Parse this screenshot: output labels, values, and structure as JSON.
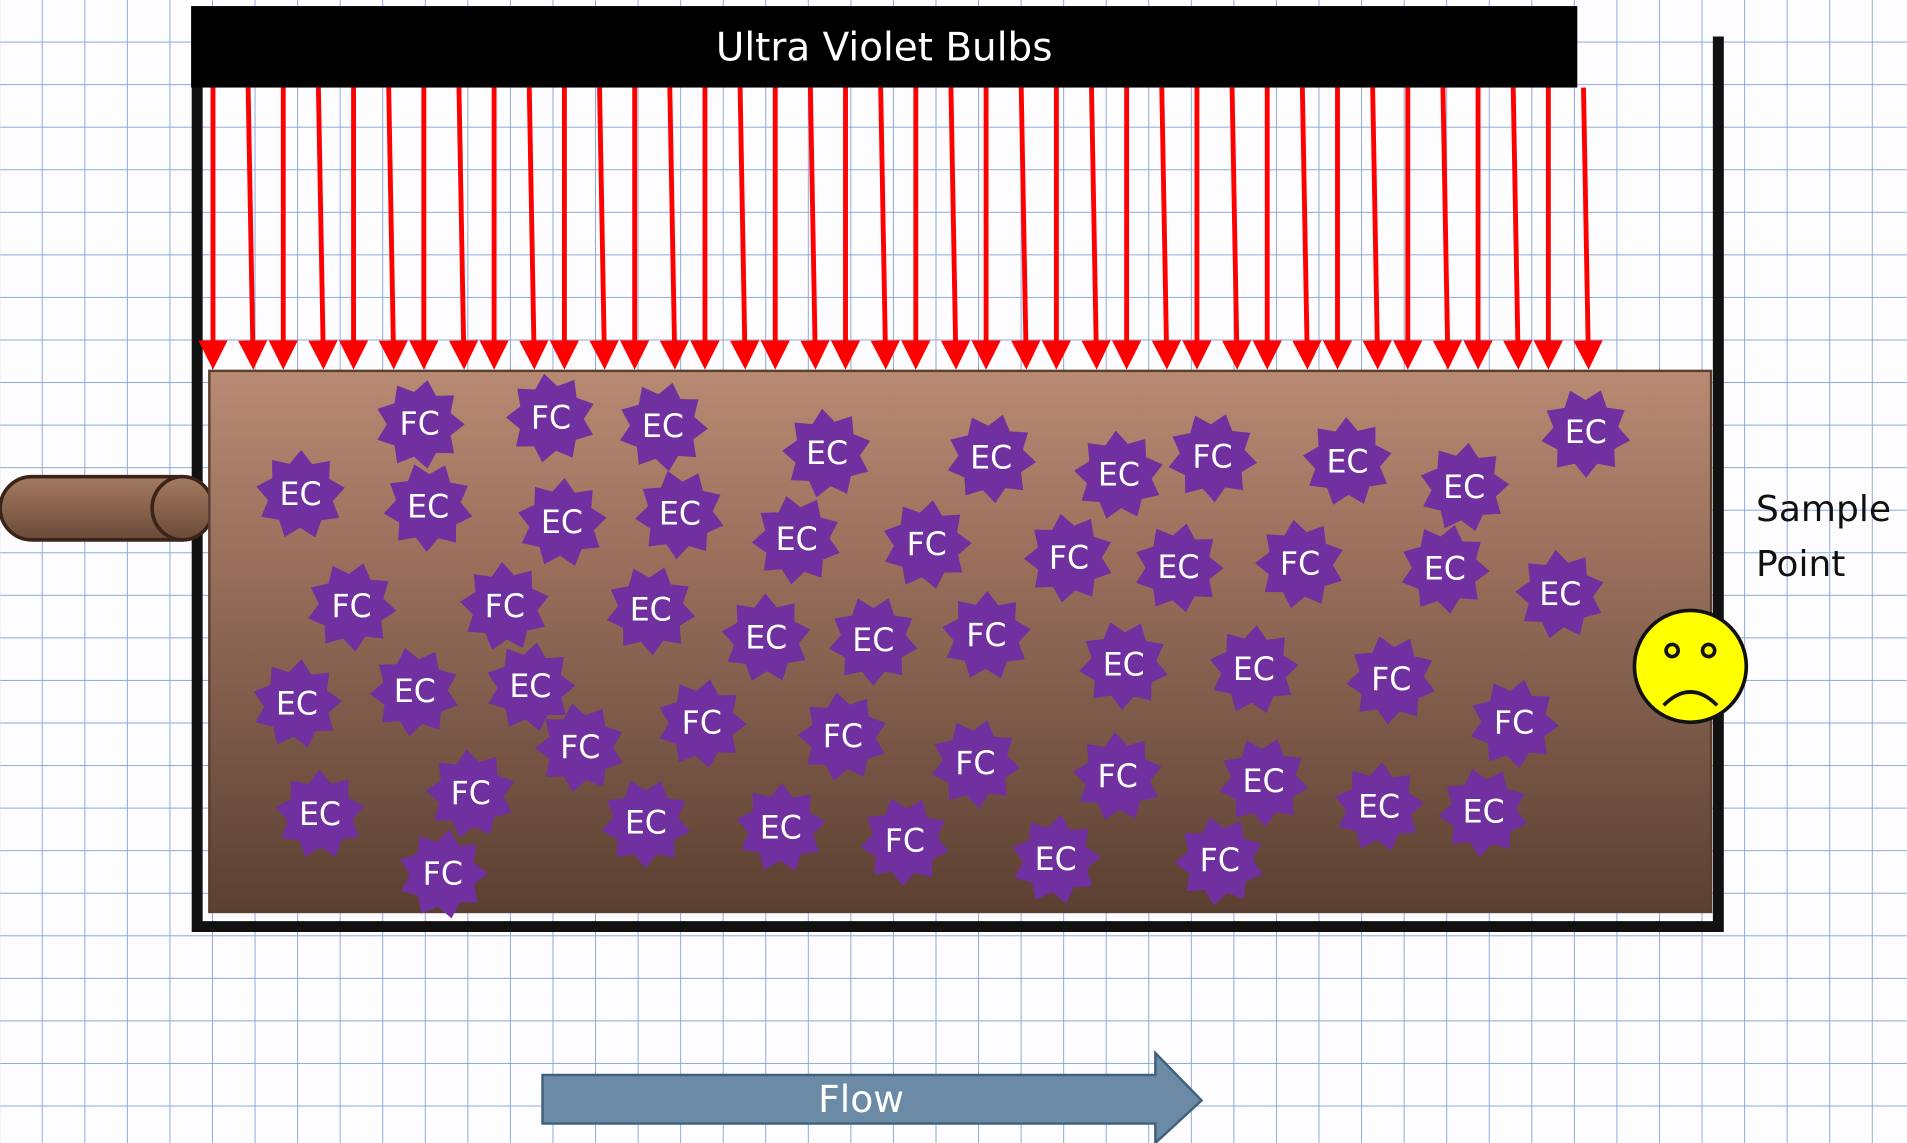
{
  "header": {
    "title": "Ultra Violet Bulbs"
  },
  "sample_point": {
    "label": "Sample Point"
  },
  "flow": {
    "label": "Flow"
  },
  "particles": [
    "FC",
    "FC",
    "EC",
    "EC",
    "EC",
    "EC",
    "FC",
    "EC",
    "EC",
    "EC",
    "EC",
    "EC",
    "EC",
    "EC",
    "EC",
    "FC",
    "FC",
    "EC",
    "FC",
    "EC",
    "EC",
    "FC",
    "FC",
    "EC",
    "EC",
    "EC",
    "FC",
    "EC",
    "EC",
    "FC",
    "EC",
    "EC",
    "EC",
    "FC",
    "FC",
    "FC",
    "FC",
    "FC",
    "FC",
    "FC",
    "EC",
    "EC",
    "EC",
    "EC",
    "FC",
    "EC",
    "EC",
    "EC",
    "FC",
    "FC"
  ]
}
